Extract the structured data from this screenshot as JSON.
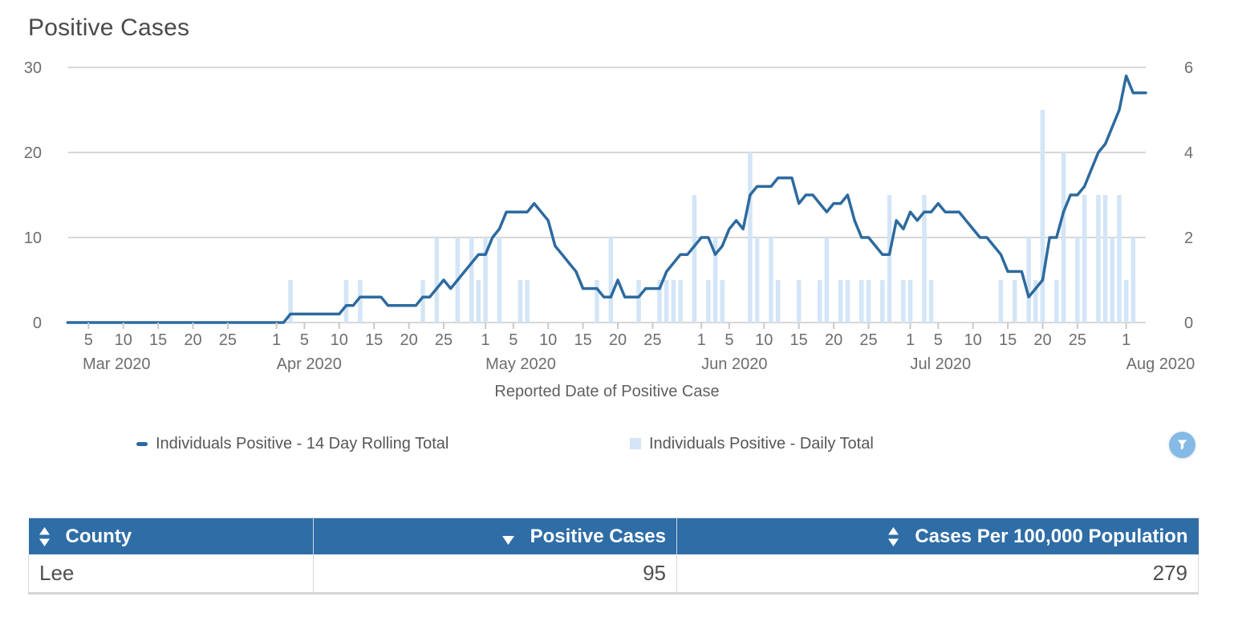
{
  "title": "Positive Cases",
  "chart": {
    "xlabel": "Reported Date of Positive Case",
    "left_axis": {
      "ticks": [
        0,
        10,
        20,
        30
      ]
    },
    "right_axis": {
      "ticks": [
        0,
        2,
        4,
        6
      ]
    },
    "x_ticks": [
      {
        "label": "5",
        "idx": 4
      },
      {
        "label": "10",
        "idx": 9
      },
      {
        "label": "15",
        "idx": 14
      },
      {
        "label": "20",
        "idx": 19
      },
      {
        "label": "25",
        "idx": 24
      },
      {
        "label": "1",
        "idx": 31
      },
      {
        "label": "5",
        "idx": 35
      },
      {
        "label": "10",
        "idx": 40
      },
      {
        "label": "15",
        "idx": 45
      },
      {
        "label": "20",
        "idx": 50
      },
      {
        "label": "25",
        "idx": 55
      },
      {
        "label": "1",
        "idx": 61
      },
      {
        "label": "5",
        "idx": 65
      },
      {
        "label": "10",
        "idx": 70
      },
      {
        "label": "15",
        "idx": 75
      },
      {
        "label": "20",
        "idx": 80
      },
      {
        "label": "25",
        "idx": 85
      },
      {
        "label": "1",
        "idx": 92
      },
      {
        "label": "5",
        "idx": 96
      },
      {
        "label": "10",
        "idx": 101
      },
      {
        "label": "15",
        "idx": 106
      },
      {
        "label": "20",
        "idx": 111
      },
      {
        "label": "25",
        "idx": 116
      },
      {
        "label": "1",
        "idx": 122
      },
      {
        "label": "5",
        "idx": 126
      },
      {
        "label": "10",
        "idx": 131
      },
      {
        "label": "15",
        "idx": 136
      },
      {
        "label": "20",
        "idx": 141
      },
      {
        "label": "25",
        "idx": 146
      },
      {
        "label": "1",
        "idx": 153
      }
    ],
    "month_labels": [
      {
        "label": "Mar 2020",
        "idx": 0,
        "x": 103
      },
      {
        "label": "Apr 2020",
        "idx": 31
      },
      {
        "label": "May 2020",
        "idx": 61
      },
      {
        "label": "Jun 2020",
        "idx": 92
      },
      {
        "label": "Jul 2020",
        "idx": 122
      },
      {
        "label": "Aug 2020",
        "idx": 153
      }
    ],
    "legend": [
      {
        "label": "Individuals Positive - 14 Day Rolling Total",
        "type": "line"
      },
      {
        "label": "Individuals Positive - Daily Total",
        "type": "bar"
      }
    ],
    "colors": {
      "line": "#2d6a9e",
      "bar": "#d3e5f7",
      "grid": "#d7d7d7",
      "tick": "#c9c9c9",
      "axis_text": "#6d6d6d",
      "table_header": "#2f6da6",
      "filter_button": "#85bae7"
    }
  },
  "chart_data": {
    "type": "combo",
    "x_axis": {
      "start": "2020-03-01",
      "end": "2020-08-02",
      "unit": "day"
    },
    "left_ylim": [
      0,
      30
    ],
    "right_ylim": [
      0,
      6
    ],
    "series": [
      {
        "name": "Individuals Positive - 14 Day Rolling Total",
        "type": "line",
        "axis": "left",
        "values": [
          0,
          0,
          0,
          0,
          0,
          0,
          0,
          0,
          0,
          0,
          0,
          0,
          0,
          0,
          0,
          0,
          0,
          0,
          0,
          0,
          0,
          0,
          0,
          0,
          0,
          0,
          0,
          0,
          0,
          0,
          0,
          0,
          0,
          1,
          1,
          1,
          1,
          1,
          1,
          1,
          1,
          2,
          2,
          3,
          3,
          3,
          3,
          2,
          2,
          2,
          2,
          2,
          3,
          3,
          4,
          5,
          4,
          5,
          6,
          7,
          8,
          8,
          10,
          11,
          13,
          13,
          13,
          13,
          14,
          13,
          12,
          9,
          8,
          7,
          6,
          4,
          4,
          4,
          3,
          3,
          5,
          3,
          3,
          3,
          4,
          4,
          4,
          6,
          7,
          8,
          8,
          9,
          10,
          10,
          8,
          9,
          11,
          12,
          11,
          15,
          16,
          16,
          16,
          17,
          17,
          17,
          14,
          15,
          15,
          14,
          13,
          14,
          14,
          15,
          12,
          10,
          10,
          9,
          8,
          8,
          12,
          11,
          13,
          12,
          13,
          13,
          14,
          13,
          13,
          13,
          12,
          11,
          10,
          10,
          9,
          8,
          6,
          6,
          6,
          3,
          4,
          5,
          10,
          10,
          13,
          15,
          15,
          16,
          18,
          20,
          21,
          23,
          25,
          29,
          27
        ]
      },
      {
        "name": "Individuals Positive - Daily Total",
        "type": "bar",
        "axis": "right",
        "points": [
          {
            "date": "Apr 3",
            "value": 1
          },
          {
            "date": "Apr 11",
            "value": 1
          },
          {
            "date": "Apr 13",
            "value": 1
          },
          {
            "date": "Apr 22",
            "value": 1
          },
          {
            "date": "Apr 24",
            "value": 2
          },
          {
            "date": "Apr 27",
            "value": 2
          },
          {
            "date": "Apr 29",
            "value": 2
          },
          {
            "date": "Apr 30",
            "value": 1
          },
          {
            "date": "May 1",
            "value": 2
          },
          {
            "date": "May 3",
            "value": 2
          },
          {
            "date": "May 6",
            "value": 1
          },
          {
            "date": "May 7",
            "value": 1
          },
          {
            "date": "May 17",
            "value": 1
          },
          {
            "date": "May 19",
            "value": 2
          },
          {
            "date": "May 23",
            "value": 1
          },
          {
            "date": "May 26",
            "value": 1
          },
          {
            "date": "May 27",
            "value": 1
          },
          {
            "date": "May 28",
            "value": 1
          },
          {
            "date": "May 29",
            "value": 1
          },
          {
            "date": "May 31",
            "value": 3
          },
          {
            "date": "Jun 2",
            "value": 1
          },
          {
            "date": "Jun 3",
            "value": 2
          },
          {
            "date": "Jun 4",
            "value": 1
          },
          {
            "date": "Jun 8",
            "value": 4
          },
          {
            "date": "Jun 9",
            "value": 2
          },
          {
            "date": "Jun 11",
            "value": 2
          },
          {
            "date": "Jun 12",
            "value": 1
          },
          {
            "date": "Jun 15",
            "value": 1
          },
          {
            "date": "Jun 18",
            "value": 1
          },
          {
            "date": "Jun 19",
            "value": 2
          },
          {
            "date": "Jun 21",
            "value": 1
          },
          {
            "date": "Jun 22",
            "value": 1
          },
          {
            "date": "Jun 24",
            "value": 1
          },
          {
            "date": "Jun 25",
            "value": 1
          },
          {
            "date": "Jun 27",
            "value": 1
          },
          {
            "date": "Jun 28",
            "value": 3
          },
          {
            "date": "Jun 30",
            "value": 1
          },
          {
            "date": "Jul 1",
            "value": 1
          },
          {
            "date": "Jul 3",
            "value": 3
          },
          {
            "date": "Jul 4",
            "value": 1
          },
          {
            "date": "Jul 14",
            "value": 1
          },
          {
            "date": "Jul 16",
            "value": 1
          },
          {
            "date": "Jul 18",
            "value": 2
          },
          {
            "date": "Jul 19",
            "value": 1
          },
          {
            "date": "Jul 20",
            "value": 5
          },
          {
            "date": "Jul 22",
            "value": 1
          },
          {
            "date": "Jul 23",
            "value": 4
          },
          {
            "date": "Jul 25",
            "value": 2
          },
          {
            "date": "Jul 26",
            "value": 3
          },
          {
            "date": "Jul 28",
            "value": 3
          },
          {
            "date": "Jul 29",
            "value": 3
          },
          {
            "date": "Jul 30",
            "value": 2
          },
          {
            "date": "Jul 31",
            "value": 3
          },
          {
            "date": "Aug 1",
            "value": 1
          },
          {
            "date": "Aug 2",
            "value": 2
          }
        ]
      }
    ]
  },
  "filter_button": {
    "icon": "funnel-icon"
  },
  "table": {
    "columns": [
      {
        "label": "County",
        "sort": "both",
        "align": "left"
      },
      {
        "label": "Positive Cases",
        "sort": "desc",
        "align": "right"
      },
      {
        "label": "Cases Per 100,000 Population",
        "sort": "both",
        "align": "right"
      }
    ],
    "rows": [
      {
        "county": "Lee",
        "positive_cases": "95",
        "cases_per_100k": "279"
      }
    ]
  }
}
